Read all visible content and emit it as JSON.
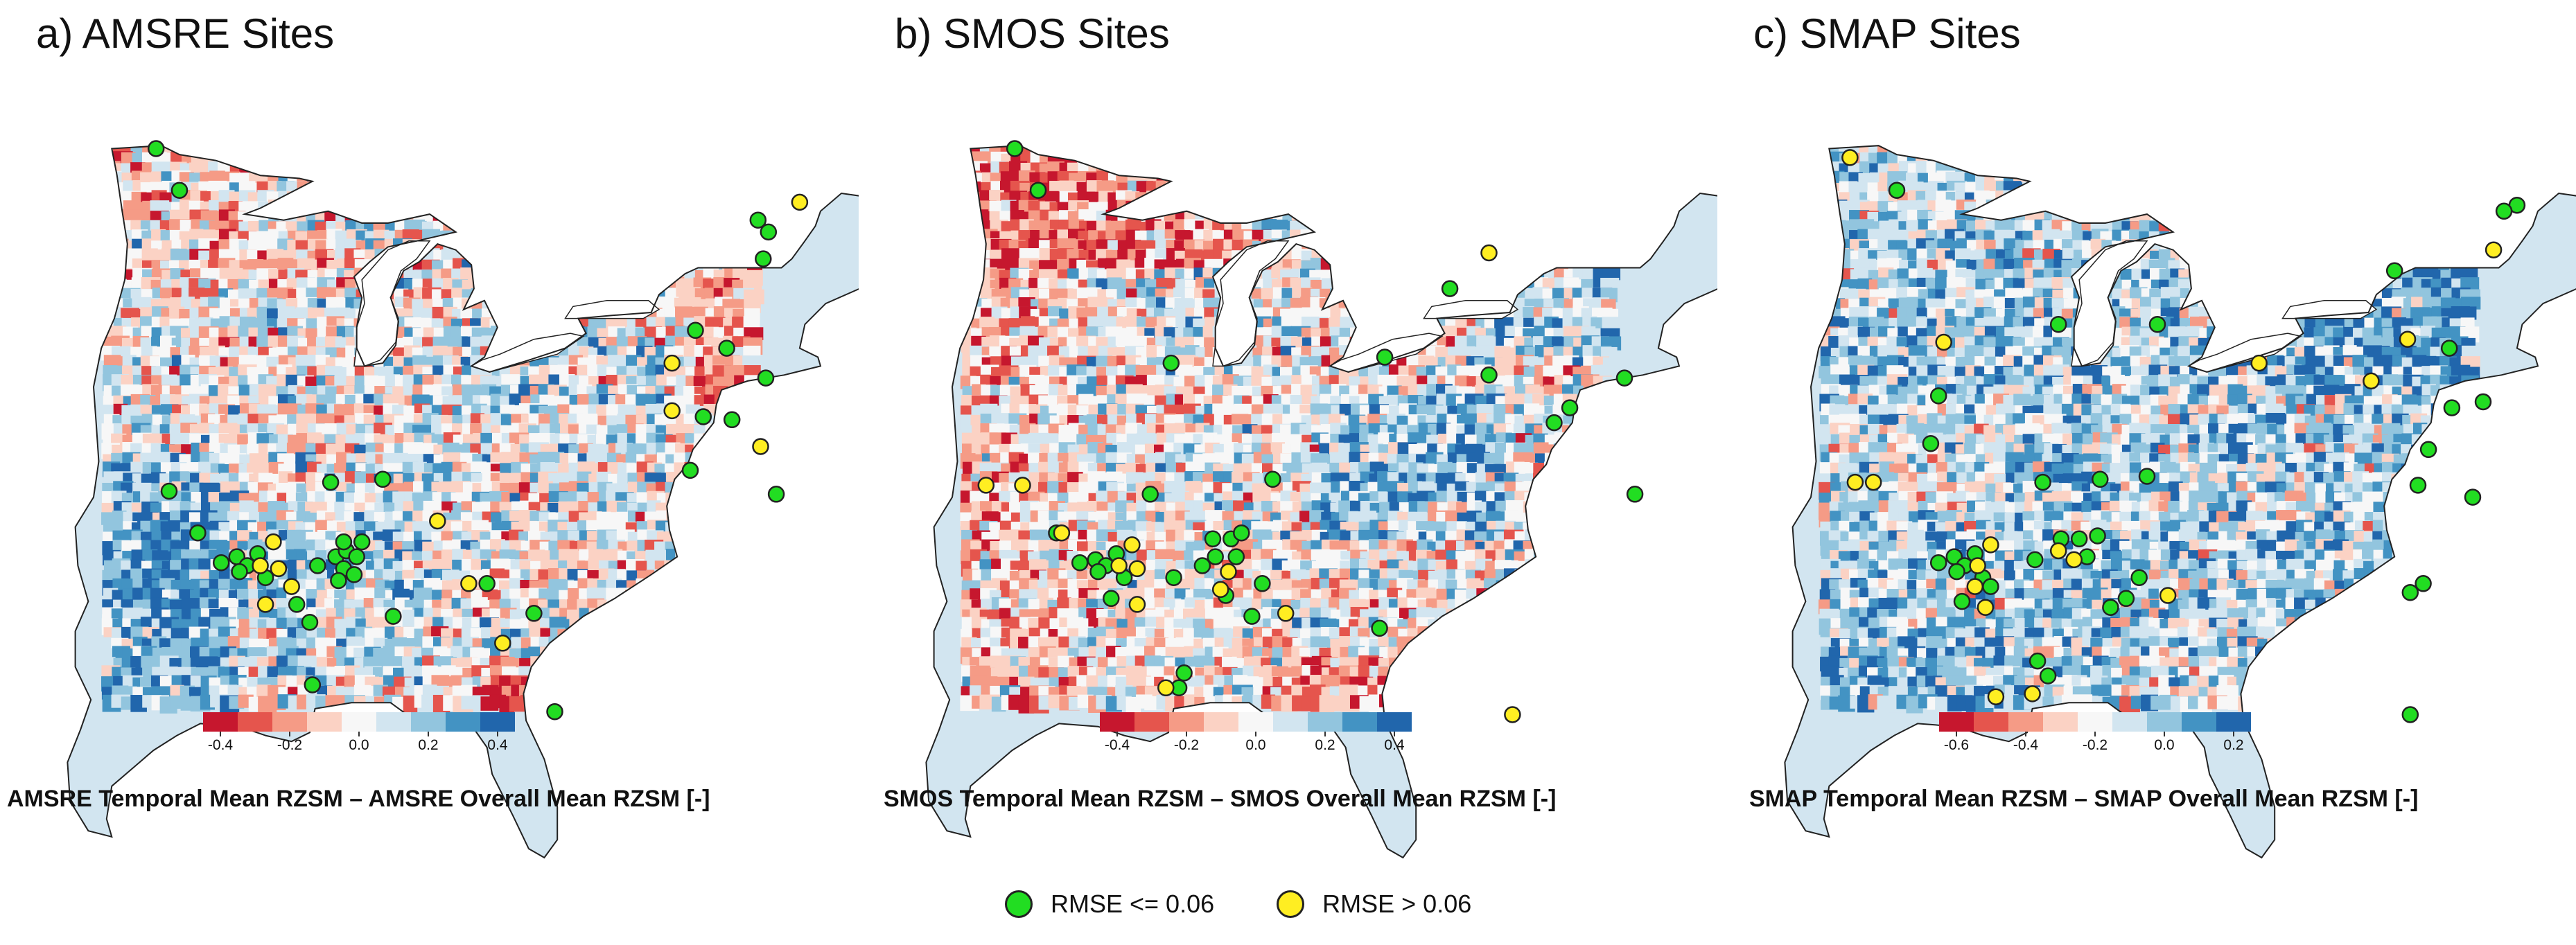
{
  "panels": [
    {
      "title": "a) AMSRE Sites",
      "caption": "AMSRE Temporal Mean RZSM – AMSRE Overall Mean RZSM [-]",
      "colorbar_ticks": [
        "-0.4",
        "-0.2",
        "0.0",
        "0.2",
        "0.4"
      ],
      "color_steps": [
        "#c6172e",
        "#e5554d",
        "#f59b86",
        "#fbd2c4",
        "#f7f7f7",
        "#d2e5f0",
        "#92c5de",
        "#4393c3",
        "#2166ac"
      ],
      "sites_good": [
        [
          -95.5,
          49.0
        ],
        [
          -94.6,
          47.6
        ],
        [
          -72.4,
          46.6
        ],
        [
          -72.0,
          46.2
        ],
        [
          -72.2,
          45.3
        ],
        [
          -74.8,
          42.9
        ],
        [
          -73.6,
          42.3
        ],
        [
          -72.1,
          41.3
        ],
        [
          -74.5,
          40.0
        ],
        [
          -73.4,
          39.9
        ],
        [
          -75.0,
          38.2
        ],
        [
          -71.7,
          37.4
        ],
        [
          -95.0,
          37.5
        ],
        [
          -88.8,
          37.8
        ],
        [
          -86.8,
          37.9
        ],
        [
          -93.9,
          36.1
        ],
        [
          -93.0,
          35.1
        ],
        [
          -92.4,
          35.3
        ],
        [
          -92.0,
          35.0
        ],
        [
          -91.6,
          35.4
        ],
        [
          -92.3,
          34.8
        ],
        [
          -91.3,
          34.6
        ],
        [
          -89.3,
          35.0
        ],
        [
          -88.6,
          35.3
        ],
        [
          -88.2,
          35.5
        ],
        [
          -87.8,
          35.3
        ],
        [
          -88.3,
          34.9
        ],
        [
          -87.9,
          34.7
        ],
        [
          -88.5,
          34.5
        ],
        [
          -88.3,
          35.8
        ],
        [
          -87.6,
          35.8
        ],
        [
          -90.1,
          33.7
        ],
        [
          -89.6,
          33.1
        ],
        [
          -86.4,
          33.3
        ],
        [
          -82.8,
          34.4
        ],
        [
          -81.0,
          33.4
        ],
        [
          -89.5,
          31.0
        ],
        [
          -80.2,
          30.1
        ]
      ],
      "sites_bad": [
        [
          -70.8,
          47.2
        ],
        [
          -75.7,
          41.8
        ],
        [
          -75.7,
          40.2
        ],
        [
          -72.3,
          39.0
        ],
        [
          -91.0,
          35.8
        ],
        [
          -91.5,
          35.0
        ],
        [
          -90.8,
          34.9
        ],
        [
          -84.7,
          36.5
        ],
        [
          -90.3,
          34.3
        ],
        [
          -91.3,
          33.7
        ],
        [
          -83.5,
          34.4
        ],
        [
          -82.2,
          32.4
        ]
      ]
    },
    {
      "title": "b) SMOS Sites",
      "caption": "SMOS Temporal Mean RZSM – SMOS Overall Mean RZSM [-]",
      "colorbar_ticks": [
        "-0.4",
        "-0.2",
        "0.0",
        "0.2",
        "0.4"
      ],
      "color_steps": [
        "#c6172e",
        "#e5554d",
        "#f59b86",
        "#fbd2c4",
        "#f7f7f7",
        "#d2e5f0",
        "#92c5de",
        "#4393c3",
        "#2166ac"
      ],
      "sites_good": [
        [
          -95.5,
          49.0
        ],
        [
          -94.6,
          47.6
        ],
        [
          -78.8,
          44.3
        ],
        [
          -81.3,
          42.0
        ],
        [
          -89.5,
          41.8
        ],
        [
          -77.3,
          41.4
        ],
        [
          -72.1,
          41.3
        ],
        [
          -74.8,
          39.8
        ],
        [
          -74.2,
          40.3
        ],
        [
          -71.7,
          37.4
        ],
        [
          -85.6,
          37.9
        ],
        [
          -90.3,
          37.4
        ],
        [
          -93.9,
          36.1
        ],
        [
          -93.0,
          35.1
        ],
        [
          -92.4,
          35.2
        ],
        [
          -92.0,
          35.0
        ],
        [
          -91.6,
          35.4
        ],
        [
          -92.3,
          34.8
        ],
        [
          -91.3,
          34.6
        ],
        [
          -91.8,
          33.9
        ],
        [
          -89.4,
          34.6
        ],
        [
          -88.3,
          35.0
        ],
        [
          -87.8,
          35.3
        ],
        [
          -87.9,
          35.9
        ],
        [
          -87.2,
          35.9
        ],
        [
          -86.8,
          36.1
        ],
        [
          -87.0,
          35.3
        ],
        [
          -86.0,
          34.4
        ],
        [
          -87.4,
          34.0
        ],
        [
          -86.4,
          33.3
        ],
        [
          -81.5,
          32.9
        ],
        [
          -89.0,
          31.4
        ],
        [
          -89.2,
          30.9
        ]
      ],
      "sites_bad": [
        [
          -77.3,
          45.5
        ],
        [
          -96.6,
          37.7
        ],
        [
          -95.2,
          37.7
        ],
        [
          -93.7,
          36.1
        ],
        [
          -91.5,
          35.0
        ],
        [
          -90.8,
          34.9
        ],
        [
          -91.0,
          35.7
        ],
        [
          -87.3,
          34.8
        ],
        [
          -87.6,
          34.2
        ],
        [
          -85.1,
          33.4
        ],
        [
          -89.7,
          30.9
        ],
        [
          -76.4,
          30.0
        ],
        [
          -90.8,
          33.7
        ]
      ]
    },
    {
      "title": "c) SMAP Sites",
      "caption": "SMAP Temporal Mean RZSM – SMAP Overall Mean RZSM [-]",
      "colorbar_ticks": [
        "-0.6",
        "-0.4",
        "-0.2",
        "0.0",
        "0.2"
      ],
      "color_steps": [
        "#c6172e",
        "#e5554d",
        "#f59b86",
        "#fbd2c4",
        "#f7f7f7",
        "#d2e5f0",
        "#92c5de",
        "#4393c3",
        "#2166ac"
      ],
      "sites_good": [
        [
          -94.6,
          47.6
        ],
        [
          -70.8,
          47.1
        ],
        [
          -71.3,
          46.9
        ],
        [
          -75.5,
          44.9
        ],
        [
          -84.6,
          43.1
        ],
        [
          -88.4,
          43.1
        ],
        [
          -73.4,
          42.3
        ],
        [
          -93.0,
          40.7
        ],
        [
          -73.3,
          40.3
        ],
        [
          -72.1,
          40.5
        ],
        [
          -93.3,
          39.1
        ],
        [
          -74.2,
          38.9
        ],
        [
          -74.6,
          37.7
        ],
        [
          -72.5,
          37.3
        ],
        [
          -89.0,
          37.8
        ],
        [
          -86.8,
          37.9
        ],
        [
          -85.0,
          38.0
        ],
        [
          -93.0,
          35.1
        ],
        [
          -92.4,
          35.3
        ],
        [
          -92.0,
          35.0
        ],
        [
          -91.6,
          35.4
        ],
        [
          -92.3,
          34.8
        ],
        [
          -91.3,
          34.6
        ],
        [
          -91.0,
          34.3
        ],
        [
          -92.1,
          33.8
        ],
        [
          -89.3,
          35.2
        ],
        [
          -88.3,
          35.9
        ],
        [
          -87.6,
          35.9
        ],
        [
          -86.9,
          36.0
        ],
        [
          -87.3,
          35.3
        ],
        [
          -86.4,
          33.6
        ],
        [
          -85.8,
          33.9
        ],
        [
          -85.3,
          34.6
        ],
        [
          -74.9,
          34.1
        ],
        [
          -89.2,
          31.8
        ],
        [
          -88.8,
          31.3
        ],
        [
          -74.9,
          30.0
        ],
        [
          -74.4,
          34.4
        ]
      ],
      "sites_bad": [
        [
          -96.4,
          48.7
        ],
        [
          -71.7,
          45.6
        ],
        [
          -92.8,
          42.5
        ],
        [
          -75.0,
          42.6
        ],
        [
          -80.7,
          41.8
        ],
        [
          -76.4,
          41.2
        ],
        [
          -96.2,
          37.8
        ],
        [
          -95.5,
          37.8
        ],
        [
          -91.5,
          35.0
        ],
        [
          -91.0,
          35.7
        ],
        [
          -88.4,
          35.5
        ],
        [
          -87.8,
          35.2
        ],
        [
          -91.2,
          33.6
        ],
        [
          -84.2,
          34.0
        ],
        [
          -90.8,
          30.6
        ],
        [
          -89.4,
          30.7
        ],
        [
          -91.6,
          34.3
        ]
      ]
    }
  ],
  "legend": {
    "good_label": "RMSE <= 0.06",
    "bad_label": "RMSE > 0.06",
    "good_color": "#22dd22",
    "bad_color": "#ffee22"
  }
}
